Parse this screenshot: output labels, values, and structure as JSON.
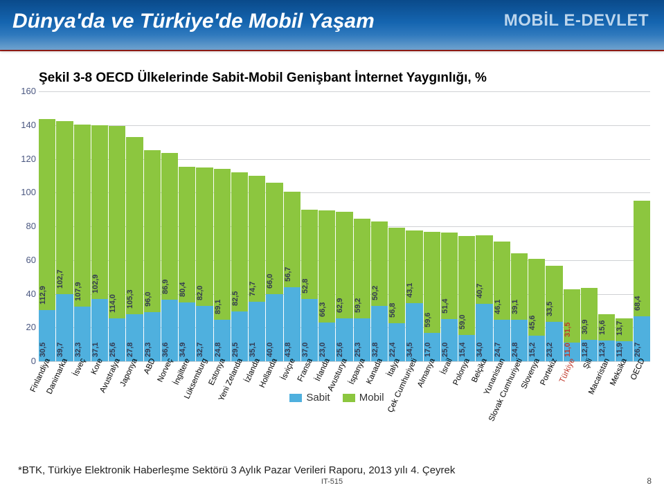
{
  "header": {
    "title": "Dünya'da ve Türkiye'de Mobil Yaşam",
    "right": "MOBİL E-DEVLET"
  },
  "chart": {
    "title": "Şekil 3-8 OECD Ülkelerinde Sabit-Mobil Genişbant İnternet Yaygınlığı, %",
    "ylim": [
      0,
      160
    ],
    "yticks": [
      0,
      20,
      40,
      60,
      80,
      100,
      120,
      140,
      160
    ],
    "colors": {
      "sabit": "#4fb0de",
      "mobil": "#8cc63f",
      "axis": "#4a5780",
      "grid": "#cfd1d4",
      "value_text": "#343b52",
      "turkey_text": "#c0392b",
      "header_gradient_top": "#0a4a8a",
      "header_gradient_bottom": "#6fa2ce",
      "red_line": "#b0211a",
      "background": "#ffffff"
    },
    "legend": {
      "sabit": "Sabit",
      "mobil": "Mobil"
    },
    "label_fontsize": 11.5,
    "value_fontsize": 11,
    "title_fontsize": 19,
    "ytick_fontsize": 13,
    "bar_width": 1.0,
    "categories": [
      {
        "name": "Finlandiya",
        "sabit": 30.5,
        "mobil": 112.9
      },
      {
        "name": "Danimarka",
        "sabit": 39.7,
        "mobil": 102.7
      },
      {
        "name": "İsveç",
        "sabit": 32.3,
        "mobil": 107.9
      },
      {
        "name": "Kore",
        "sabit": 37.1,
        "mobil": 102.9
      },
      {
        "name": "Avustralya",
        "sabit": 25.6,
        "mobil": 114.0
      },
      {
        "name": "Japonya",
        "sabit": 27.8,
        "mobil": 105.3
      },
      {
        "name": "ABD",
        "sabit": 29.3,
        "mobil": 96.0
      },
      {
        "name": "Norveç",
        "sabit": 36.6,
        "mobil": 86.9
      },
      {
        "name": "İngiltere",
        "sabit": 34.9,
        "mobil": 80.4
      },
      {
        "name": "Lüksemburg",
        "sabit": 32.7,
        "mobil": 82.0
      },
      {
        "name": "Estonya",
        "sabit": 24.8,
        "mobil": 89.1
      },
      {
        "name": "Yeni Zelanda",
        "sabit": 29.5,
        "mobil": 82.5
      },
      {
        "name": "İzlanda",
        "sabit": 35.1,
        "mobil": 74.7
      },
      {
        "name": "Hollanda",
        "sabit": 40.0,
        "mobil": 66.0
      },
      {
        "name": "İsviçre",
        "sabit": 43.8,
        "mobil": 56.7
      },
      {
        "name": "Fransa",
        "sabit": 37.0,
        "mobil": 52.8
      },
      {
        "name": "İrlanda",
        "sabit": 23.0,
        "mobil": 66.3
      },
      {
        "name": "Avusturya",
        "sabit": 25.6,
        "mobil": 62.9
      },
      {
        "name": "İspanya",
        "sabit": 25.3,
        "mobil": 59.2
      },
      {
        "name": "Kanada",
        "sabit": 32.8,
        "mobil": 50.2
      },
      {
        "name": "İtalya",
        "sabit": 22.4,
        "mobil": 56.8
      },
      {
        "name": "Çek Cumhuriyeti",
        "sabit": 34.5,
        "mobil": 43.1
      },
      {
        "name": "Almanya",
        "sabit": 17.0,
        "mobil": 59.6
      },
      {
        "name": "İsrail",
        "sabit": 25.0,
        "mobil": 51.4
      },
      {
        "name": "Polonya",
        "sabit": 15.4,
        "mobil": 59.0
      },
      {
        "name": "Belçika",
        "sabit": 34.0,
        "mobil": 40.7
      },
      {
        "name": "Yunanistan",
        "sabit": 24.7,
        "mobil": 46.1
      },
      {
        "name": "Slovak Cumhuriyeti",
        "sabit": 24.8,
        "mobil": 39.1
      },
      {
        "name": "Slovenya",
        "sabit": 15.2,
        "mobil": 45.6
      },
      {
        "name": "Portekiz",
        "sabit": 23.2,
        "mobil": 33.5
      },
      {
        "name": "Türkiye",
        "sabit": 11.0,
        "mobil": 31.5,
        "highlight": true
      },
      {
        "name": "Şili",
        "sabit": 12.8,
        "mobil": 30.9
      },
      {
        "name": "Macaristan",
        "sabit": 12.3,
        "mobil": 15.6
      },
      {
        "name": "Meksika",
        "sabit": 11.9,
        "mobil": 13.7
      },
      {
        "name": "OECD",
        "sabit": 26.7,
        "mobil": 68.4
      }
    ]
  },
  "footer": {
    "note": "*BTK, Türkiye Elektronik Haberleşme Sektörü 3 Aylık Pazar Verileri Raporu, 2013 yılı 4. Çeyrek",
    "code": "IT-515",
    "page": "8"
  }
}
